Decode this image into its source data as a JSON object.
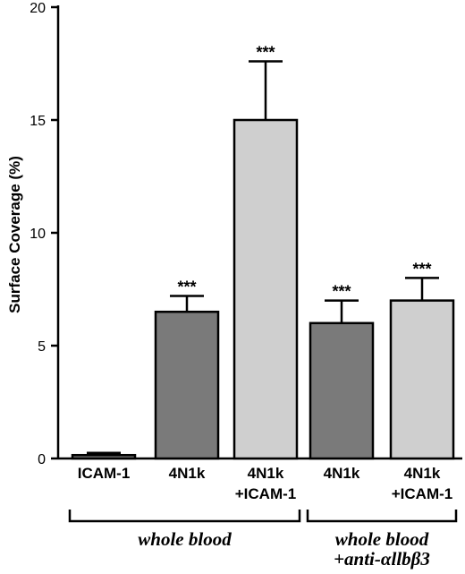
{
  "chart_data": {
    "type": "bar",
    "ylabel": "Surface Coverage (%)",
    "xlabel": "",
    "ylim": [
      0,
      20
    ],
    "yticks": [
      "0",
      "5",
      "10",
      "15",
      "20"
    ],
    "grid": false,
    "bars": [
      {
        "label_lines": [
          "ICAM-1"
        ],
        "value": 0.15,
        "error": 0.1,
        "significance": "",
        "color": "#7a7a7a"
      },
      {
        "label_lines": [
          "4N1k"
        ],
        "value": 6.5,
        "error": 0.7,
        "significance": "***",
        "color": "#7a7a7a"
      },
      {
        "label_lines": [
          "4N1k",
          "+ICAM-1"
        ],
        "value": 15.0,
        "error": 2.6,
        "significance": "***",
        "color": "#cfcfcf"
      },
      {
        "label_lines": [
          "4N1k"
        ],
        "value": 6.0,
        "error": 1.0,
        "significance": "***",
        "color": "#7a7a7a"
      },
      {
        "label_lines": [
          "4N1k",
          "+ICAM-1"
        ],
        "value": 7.0,
        "error": 1.0,
        "significance": "***",
        "color": "#cfcfcf"
      }
    ],
    "groups": [
      {
        "label_lines": [
          "whole blood"
        ],
        "first_bar": 0,
        "last_bar": 2
      },
      {
        "label_lines": [
          "whole blood",
          "+anti-αllbβ3"
        ],
        "first_bar": 3,
        "last_bar": 4
      }
    ]
  }
}
